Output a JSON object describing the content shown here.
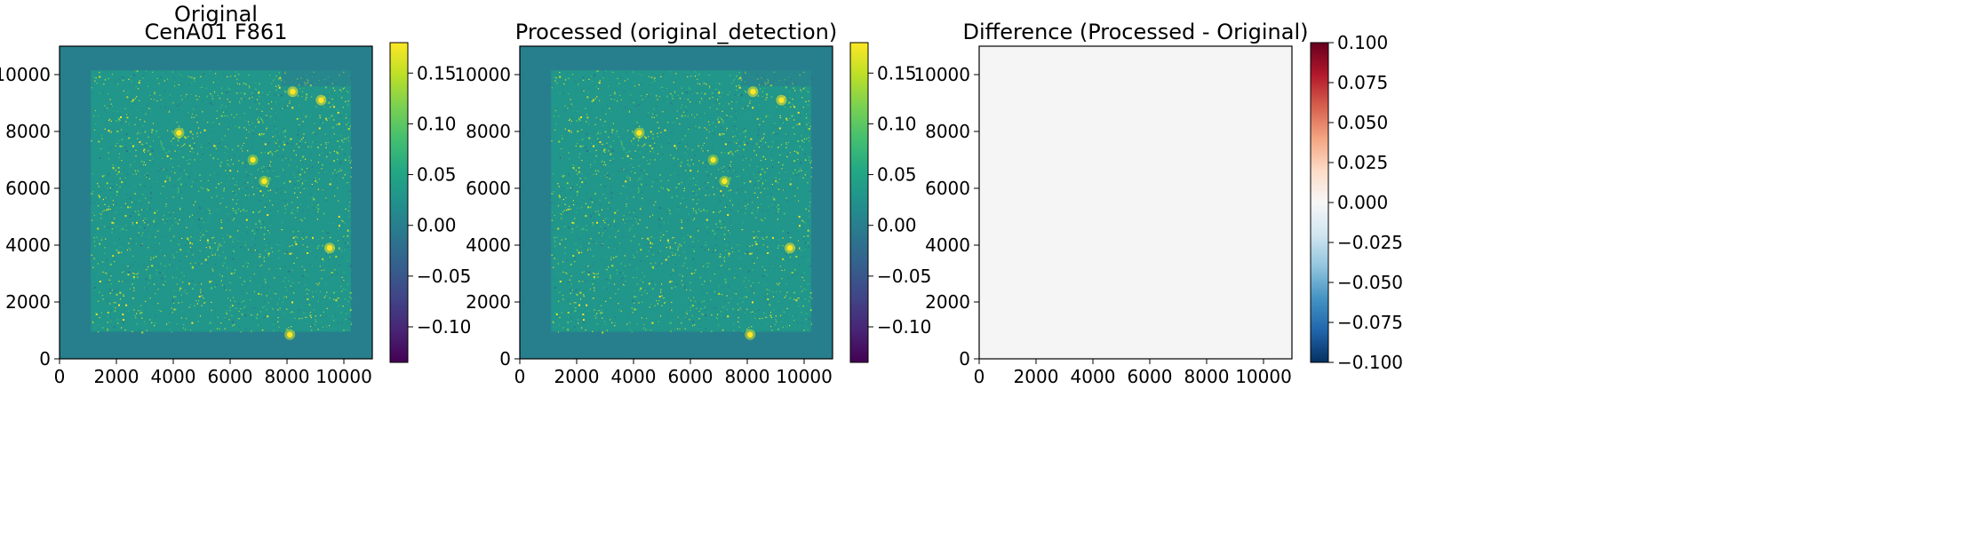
{
  "chart_data": [
    {
      "type": "heatmap",
      "title_lines": [
        "Original",
        "CenA01 F861"
      ],
      "xlim": [
        0,
        11000
      ],
      "ylim": [
        0,
        11000
      ],
      "xticks": [
        0,
        2000,
        4000,
        6000,
        8000,
        10000
      ],
      "yticks": [
        0,
        2000,
        4000,
        6000,
        8000,
        10000
      ],
      "colormap": "viridis",
      "colorbar": {
        "range": [
          -0.135,
          0.18
        ],
        "ticks": [
          -0.1,
          -0.05,
          0.0,
          0.05,
          0.1,
          0.15
        ],
        "tick_labels": [
          "−0.10",
          "−0.05",
          "0.00",
          "0.05",
          "0.10",
          "0.15"
        ]
      },
      "background_value": 0.0,
      "image_region": {
        "x": [
          1100,
          10250
        ],
        "y": [
          950,
          10150
        ]
      },
      "bright_sources": [
        {
          "x": 9500,
          "y": 3900,
          "v": 0.18
        },
        {
          "x": 9200,
          "y": 9100,
          "v": 0.18
        },
        {
          "x": 8200,
          "y": 9400,
          "v": 0.18
        },
        {
          "x": 4200,
          "y": 7950,
          "v": 0.16
        },
        {
          "x": 7200,
          "y": 6250,
          "v": 0.15
        },
        {
          "x": 6800,
          "y": 7000,
          "v": 0.14
        },
        {
          "x": 8100,
          "y": 850,
          "v": 0.16
        }
      ]
    },
    {
      "type": "heatmap",
      "title_lines": [
        "Processed (original_detection)"
      ],
      "xlim": [
        0,
        11000
      ],
      "ylim": [
        0,
        11000
      ],
      "xticks": [
        0,
        2000,
        4000,
        6000,
        8000,
        10000
      ],
      "yticks": [
        0,
        2000,
        4000,
        6000,
        8000,
        10000
      ],
      "colormap": "viridis",
      "colorbar": {
        "range": [
          -0.135,
          0.18
        ],
        "ticks": [
          -0.1,
          -0.05,
          0.0,
          0.05,
          0.1,
          0.15
        ],
        "tick_labels": [
          "−0.10",
          "−0.05",
          "0.00",
          "0.05",
          "0.10",
          "0.15"
        ]
      },
      "background_value": 0.0,
      "image_region": {
        "x": [
          1100,
          10250
        ],
        "y": [
          950,
          10150
        ]
      },
      "bright_sources": [
        {
          "x": 9500,
          "y": 3900,
          "v": 0.18
        },
        {
          "x": 9200,
          "y": 9100,
          "v": 0.18
        },
        {
          "x": 8200,
          "y": 9400,
          "v": 0.18
        },
        {
          "x": 4200,
          "y": 7950,
          "v": 0.16
        },
        {
          "x": 7200,
          "y": 6250,
          "v": 0.15
        },
        {
          "x": 6800,
          "y": 7000,
          "v": 0.14
        },
        {
          "x": 8100,
          "y": 850,
          "v": 0.16
        }
      ]
    },
    {
      "type": "heatmap",
      "title_lines": [
        "Difference (Processed - Original)"
      ],
      "xlim": [
        0,
        11000
      ],
      "ylim": [
        0,
        11000
      ],
      "xticks": [
        0,
        2000,
        4000,
        6000,
        8000,
        10000
      ],
      "yticks": [
        0,
        2000,
        4000,
        6000,
        8000,
        10000
      ],
      "colormap": "RdBu_r",
      "colorbar": {
        "range": [
          -0.1,
          0.1
        ],
        "ticks": [
          -0.1,
          -0.075,
          -0.05,
          -0.025,
          0.0,
          0.025,
          0.05,
          0.075,
          0.1
        ],
        "tick_labels": [
          "−0.100",
          "−0.075",
          "−0.050",
          "−0.025",
          "0.000",
          "0.025",
          "0.050",
          "0.075",
          "0.100"
        ]
      },
      "fill_value": 0.0
    }
  ]
}
